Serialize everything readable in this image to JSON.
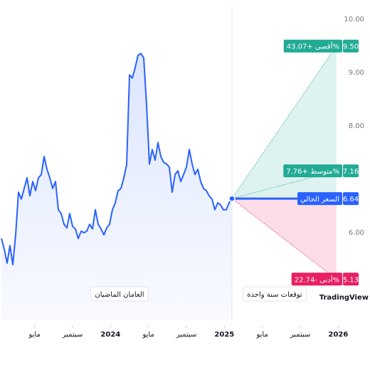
{
  "chart_data": {
    "type": "line",
    "x": [
      0.5,
      0.8,
      1.1,
      1.4,
      1.7,
      2,
      2.3,
      2.6,
      2.9,
      3.2,
      3.5,
      3.8,
      4.1,
      4.4,
      4.7,
      5,
      5.3,
      5.6,
      5.9,
      6.2,
      6.5,
      6.8,
      7.1,
      7.4,
      7.7,
      8,
      8.3,
      8.6,
      8.9,
      9.2,
      9.5,
      9.8,
      10.1,
      10.4,
      10.7,
      11,
      11.3,
      11.6,
      11.9,
      12.2,
      12.5,
      12.8,
      13.1,
      13.4,
      13.7,
      14,
      14.3,
      14.6,
      14.9,
      15.2,
      15.5,
      15.8,
      16.1,
      16.4,
      16.7,
      17,
      17.3,
      17.6,
      17.9,
      18.2,
      18.5,
      18.8,
      19.1,
      19.4,
      19.7,
      20,
      20.3,
      20.6,
      20.9,
      21.2,
      21.5,
      21.8,
      22.1,
      22.4,
      22.7,
      23,
      23.3,
      23.6,
      23.9,
      24.2,
      24.5,
      24.8
    ],
    "series": [
      {
        "color": "#2962ff",
        "values": [
          5.89,
          5.69,
          5.43,
          5.76,
          5.4,
          5.96,
          6.76,
          6.63,
          6.83,
          7.03,
          6.69,
          6.96,
          6.79,
          7.03,
          7.09,
          7.43,
          7.19,
          7.03,
          6.83,
          6.96,
          6.43,
          6.36,
          6.16,
          6.09,
          6.36,
          6.12,
          6.07,
          5.89,
          6.03,
          6.0,
          6.03,
          6.16,
          6.07,
          6.43,
          6.16,
          6.07,
          5.96,
          6.09,
          6.16,
          6.43,
          6.56,
          6.79,
          6.83,
          7.03,
          7.27,
          8.96,
          8.9,
          9.1,
          9.33,
          9.36,
          9.28,
          8.4,
          7.29,
          7.56,
          7.36,
          7.69,
          7.43,
          7.32,
          7.29,
          7.23,
          6.76,
          7.09,
          7.16,
          6.96,
          7.09,
          7.23,
          7.56,
          7.29,
          7.09,
          7.19,
          6.96,
          6.83,
          6.79,
          6.69,
          6.63,
          6.43,
          6.56,
          6.52,
          6.43,
          6.43,
          6.56,
          6.64
        ]
      }
    ],
    "xlim": [
      0.35,
      36.35
    ],
    "ylim": [
      4.36,
      10.23
    ],
    "xticks": [
      {
        "value": 4,
        "label": "مايو"
      },
      {
        "value": 8,
        "label": "سبتمبر"
      },
      {
        "value": 12,
        "label": "2024"
      },
      {
        "value": 16,
        "label": "مايو"
      },
      {
        "value": 20,
        "label": "سبتمبر"
      },
      {
        "value": 24,
        "label": "2025"
      },
      {
        "value": 28,
        "label": "مايو"
      },
      {
        "value": 32,
        "label": "سبتمبر"
      },
      {
        "value": 36,
        "label": "2026"
      }
    ],
    "yticks": [
      {
        "value": 6,
        "label": "6.00"
      },
      {
        "value": 8,
        "label": "8.00"
      },
      {
        "value": 9,
        "label": "9.00"
      },
      {
        "value": 10,
        "label": "10.00"
      }
    ],
    "period_labels": [
      "العامان الماضيان",
      "توقعات سنة واحدة"
    ],
    "watermark": "TradingView",
    "forecast": {
      "x_end": 35.8,
      "current": {
        "value": 6.64,
        "label": "6.64",
        "text": "السعر الحالي",
        "color": "#2962ff"
      },
      "max": {
        "value": 9.5,
        "label": "9.50",
        "text": "أقصى +43.07%",
        "color": "#22ab94"
      },
      "average": {
        "value": 7.16,
        "label": "7.16",
        "text": "متوسط +7.76%",
        "color": "#22ab94"
      },
      "min": {
        "value": 5.13,
        "label": "5.13",
        "text": "أدنى -22.74%",
        "color": "#e91e63"
      }
    }
  }
}
